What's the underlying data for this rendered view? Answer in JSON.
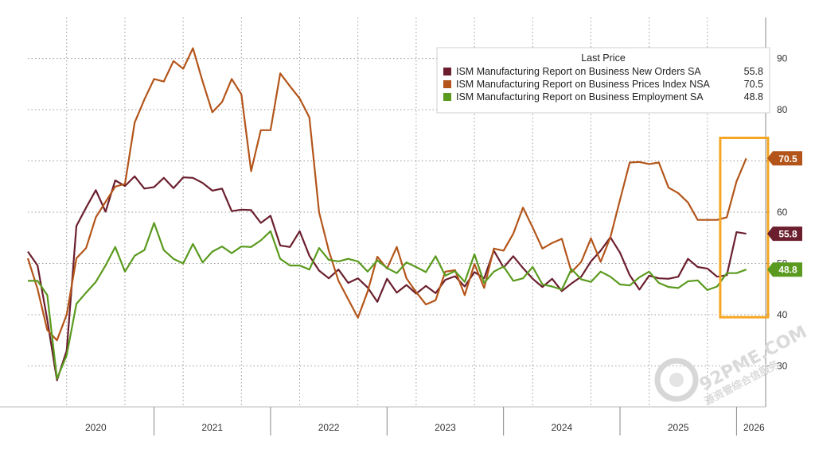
{
  "chart_data": {
    "type": "line",
    "title": "",
    "xlabel": "",
    "ylabel": "",
    "ylim": [
      22,
      98
    ],
    "yticks": [
      30,
      40,
      50,
      60,
      70,
      80,
      90
    ],
    "year_labels": [
      {
        "label": "2020",
        "t": 2020.5
      },
      {
        "label": "2021",
        "t": 2021.5
      },
      {
        "label": "2022",
        "t": 2022.5
      },
      {
        "label": "2023",
        "t": 2023.5
      },
      {
        "label": "2024",
        "t": 2024.5
      },
      {
        "label": "2025",
        "t": 2025.5
      },
      {
        "label": "2026",
        "t": 2026.15
      }
    ],
    "x_range": [
      2019.917,
      2026.25
    ],
    "year_boundaries": [
      2021,
      2022,
      2023,
      2024,
      2025,
      2026
    ],
    "month_gridlines": [
      2020.25,
      2020.75,
      2021.25,
      2021.75,
      2022.25,
      2022.75,
      2023.25,
      2023.75,
      2024.25,
      2024.75,
      2025.25,
      2025.75
    ],
    "x_start": 2019.917,
    "x_step": 0.08333,
    "legend": {
      "title": "Last Price",
      "position": "top-right"
    },
    "highlight": {
      "x_from": 2025.86,
      "x_to": 2026.27,
      "y_from": 39.5,
      "y_to": 74.5,
      "color": "#F5A623"
    },
    "series": [
      {
        "name": "ISM Manufacturing Report on Business New Orders SA",
        "last": "55.8",
        "color": "#6B1F2E",
        "values": [
          52.3,
          49.6,
          39.0,
          27.2,
          33.0,
          57.3,
          60.9,
          64.3,
          60.1,
          66.2,
          65.1,
          67.0,
          64.6,
          64.9,
          66.7,
          64.7,
          66.8,
          66.7,
          65.7,
          64.2,
          64.6,
          60.2,
          60.5,
          60.4,
          57.9,
          59.3,
          53.5,
          53.2,
          56.3,
          51.5,
          48.6,
          47.1,
          48.8,
          46.2,
          47.1,
          45.3,
          42.5,
          47.0,
          44.3,
          45.8,
          44.1,
          45.6,
          44.2,
          46.8,
          47.5,
          45.5,
          48.3,
          47.1,
          52.5,
          49.2,
          51.4,
          49.1,
          47.0,
          45.4,
          47.0,
          44.6,
          46.1,
          47.4,
          50.4,
          52.5,
          55.1,
          52.1,
          47.7,
          44.9,
          47.6,
          47.1,
          47.0,
          47.4,
          50.9,
          49.3,
          49.0,
          47.4,
          47.7,
          56.1,
          55.8
        ]
      },
      {
        "name": "ISM Manufacturing Report on Business Prices Index NSA",
        "last": "70.5",
        "color": "#B3551A",
        "values": [
          51.0,
          45.0,
          37.0,
          35.0,
          40.0,
          51.0,
          53.0,
          59.0,
          62.0,
          65.0,
          65.5,
          77.5,
          82.0,
          86.0,
          85.5,
          89.5,
          88.0,
          92.0,
          85.5,
          79.5,
          81.5,
          86.0,
          83.0,
          68.0,
          76.0,
          76.0,
          87.1,
          84.6,
          82.2,
          78.5,
          60.0,
          52.5,
          46.6,
          43.0,
          39.4,
          44.5,
          51.3,
          49.0,
          53.2,
          47.1,
          44.4,
          42.0,
          42.8,
          48.4,
          48.7,
          43.8,
          49.9,
          45.2,
          52.9,
          52.5,
          55.8,
          60.9,
          57.0,
          52.9,
          54.0,
          54.8,
          48.3,
          50.3,
          54.9,
          50.3,
          55.1,
          62.4,
          69.7,
          69.8,
          69.4,
          69.7,
          64.8,
          63.7,
          61.9,
          58.5,
          58.5,
          58.5,
          59.0,
          66.0,
          70.5
        ]
      },
      {
        "name": "ISM Manufacturing Report on Business Employment SA",
        "last": "48.8",
        "color": "#5A9A1E",
        "values": [
          46.6,
          46.6,
          43.8,
          27.5,
          32.1,
          42.1,
          44.3,
          46.4,
          49.6,
          53.2,
          48.4,
          51.5,
          52.6,
          57.9,
          52.6,
          50.9,
          50.0,
          53.8,
          50.2,
          52.3,
          53.3,
          52.0,
          53.3,
          53.2,
          54.5,
          56.3,
          50.9,
          49.6,
          49.6,
          48.8,
          53.0,
          50.7,
          50.4,
          50.9,
          50.4,
          48.4,
          50.6,
          49.1,
          48.1,
          50.2,
          49.3,
          48.3,
          51.4,
          47.6,
          48.5,
          46.4,
          51.8,
          46.2,
          48.4,
          49.4,
          46.6,
          47.1,
          49.3,
          45.9,
          45.5,
          44.9,
          48.9,
          46.9,
          46.4,
          48.4,
          47.4,
          45.9,
          45.7,
          47.3,
          48.4,
          46.2,
          45.4,
          45.2,
          46.5,
          46.7,
          44.8,
          45.5,
          48.1,
          48.1,
          48.8
        ]
      }
    ]
  },
  "watermark": {
    "line1": "92PME.COM",
    "line2": "源资管综合信服务",
    "icon": "swirl-logo-icon"
  }
}
